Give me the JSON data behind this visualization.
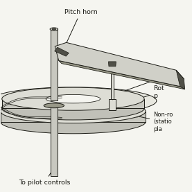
{
  "bg_color": "#f5f5f0",
  "colors": {
    "light_gray": "#c8c8c0",
    "medium_gray": "#989888",
    "dark_gray": "#505048",
    "very_light_gray": "#ddddd5",
    "line_color": "#1a1a14",
    "white": "#f5f5f0",
    "blade_top": "#d0d0c8",
    "swashplate_body": "#c0c0b8",
    "text_color": "#1a1a14"
  },
  "labels": {
    "pitch_horn": "Pitch horn",
    "pitch": "Pitch",
    "rotating_p": "Rot\np",
    "non_rotating": "Non-ro\n(statio\npla",
    "to_pilot": "To pilot controls"
  },
  "figsize": [
    2.77,
    2.77
  ],
  "dpi": 100
}
